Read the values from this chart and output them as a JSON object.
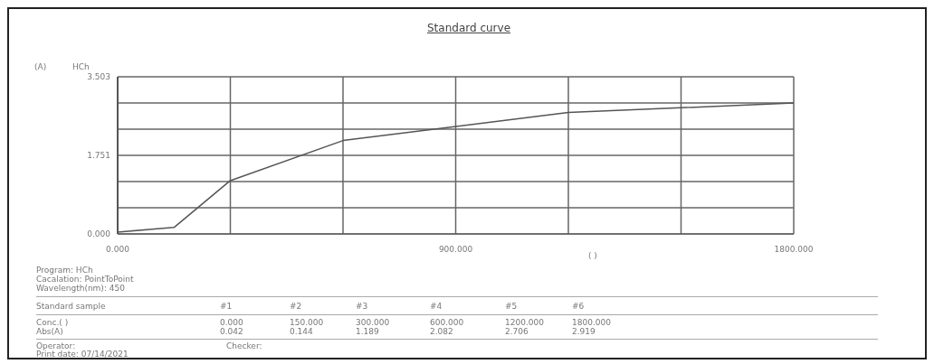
{
  "chart_data": {
    "type": "line",
    "title": "Standard curve",
    "xlabel": "( )",
    "x": [
      0,
      150,
      300,
      600,
      1200,
      1800
    ],
    "series": [
      {
        "color": "#555555",
        "values": [
          0.042,
          0.144,
          1.189,
          2.082,
          2.706,
          2.919
        ]
      }
    ],
    "xlim": [
      0,
      1800
    ],
    "xticks": [
      {
        "value": 0,
        "label": "0.000"
      },
      {
        "value": 300,
        "label": null
      },
      {
        "value": 600,
        "label": null
      },
      {
        "value": 900,
        "label": "900.000"
      },
      {
        "value": 1200,
        "label": null
      },
      {
        "value": 1500,
        "label": null
      },
      {
        "value": 1800,
        "label": "1800.000"
      }
    ],
    "ylim": [
      0,
      3.503
    ],
    "yticks": [
      {
        "value": 0,
        "label": "0.000"
      },
      {
        "value": 0.584,
        "label": null
      },
      {
        "value": 1.168,
        "label": null
      },
      {
        "value": 1.751,
        "label": "1.751"
      },
      {
        "value": 2.335,
        "label": null
      },
      {
        "value": 2.919,
        "label": null
      },
      {
        "value": 3.503,
        "label": "3.503"
      }
    ],
    "grid": true,
    "marker": "none",
    "line_style": "solid",
    "annotations": [
      "HCh",
      "Program: HCh",
      "Cacalation: PointToPoint",
      "Wavelength(nm): 450",
      "Standard sample",
      "Conc.( )",
      "Abs(A)",
      "Operator:",
      "Checker:",
      "Print date: 07/14/2021",
      "#1",
      "#2",
      "#3",
      "#4",
      "#5",
      "#6",
      "0.000",
      "150.000",
      "300.000",
      "600.000",
      "1200.000",
      "1800.000",
      "0.042",
      "0.144",
      "1.189",
      "2.082",
      "2.706",
      "2.919",
      "(A)"
    ]
  }
}
